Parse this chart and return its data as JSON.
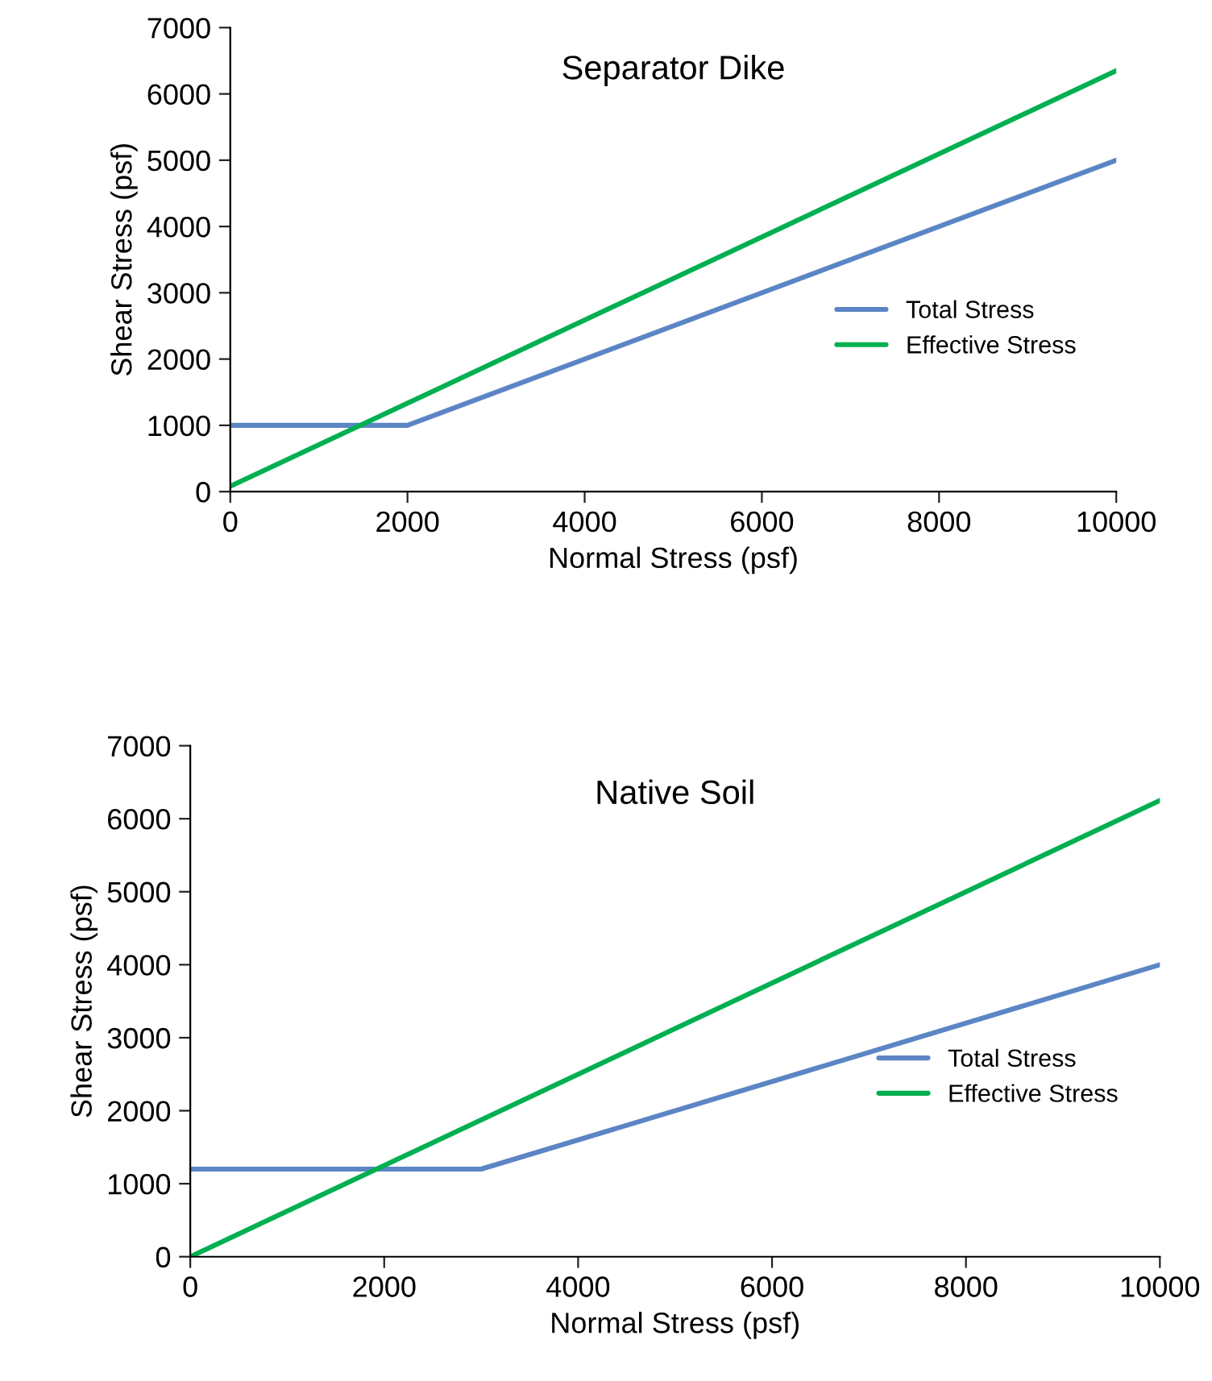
{
  "chart_data": [
    {
      "type": "line",
      "title": "Separator Dike",
      "xlabel": "Normal Stress (psf)",
      "ylabel": "Shear Stress (psf)",
      "xlim": [
        0,
        10000
      ],
      "ylim": [
        0,
        7000
      ],
      "xticks": [
        0,
        2000,
        4000,
        6000,
        8000,
        10000
      ],
      "yticks": [
        0,
        1000,
        2000,
        3000,
        4000,
        5000,
        6000,
        7000
      ],
      "grid": false,
      "legend": "right",
      "marker": "none",
      "line_style": "solid",
      "series": [
        {
          "name": "Total Stress",
          "color": "#5b85c4",
          "x": [
            0,
            2000,
            10000
          ],
          "values": [
            1000,
            1000,
            5000
          ]
        },
        {
          "name": "Effective Stress",
          "color": "#00b050",
          "x": [
            0,
            10000
          ],
          "values": [
            80,
            6350
          ]
        }
      ]
    },
    {
      "type": "line",
      "title": "Native Soil",
      "xlabel": "Normal Stress (psf)",
      "ylabel": "Shear Stress (psf)",
      "xlim": [
        0,
        10000
      ],
      "ylim": [
        0,
        7000
      ],
      "xticks": [
        0,
        2000,
        4000,
        6000,
        8000,
        10000
      ],
      "yticks": [
        0,
        1000,
        2000,
        3000,
        4000,
        5000,
        6000,
        7000
      ],
      "grid": false,
      "legend": "right",
      "marker": "none",
      "line_style": "solid",
      "series": [
        {
          "name": "Total Stress",
          "color": "#5b85c4",
          "x": [
            0,
            3000,
            10000
          ],
          "values": [
            1200,
            1200,
            4000
          ]
        },
        {
          "name": "Effective Stress",
          "color": "#00b050",
          "x": [
            0,
            10000
          ],
          "values": [
            0,
            6250
          ]
        }
      ]
    }
  ]
}
